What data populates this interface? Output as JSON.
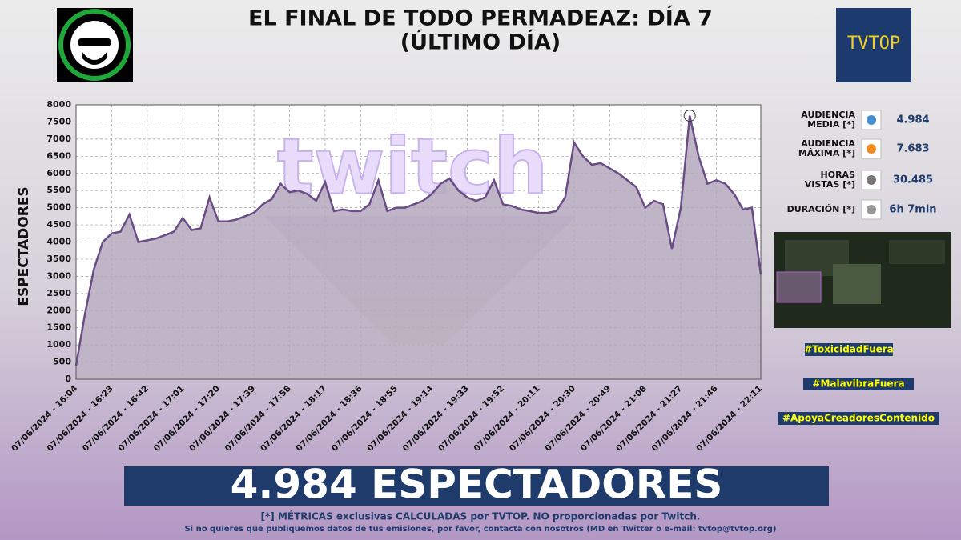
{
  "header": {
    "title_lines": [
      "EL FINAL DE TODO  PERMADEAZ: DÍA 7",
      "(ÚLTIMO DÍA)"
    ],
    "logo_text": "TVTOP"
  },
  "chart_data": {
    "type": "area",
    "watermark": "twitch",
    "y_label": "ESPECTADORES",
    "categories": [
      "07/06/2024 - 16:04",
      null,
      null,
      null,
      "07/06/2024 - 16:23",
      null,
      null,
      null,
      "07/06/2024 - 16:42",
      null,
      null,
      null,
      "07/06/2024 - 17:01",
      null,
      null,
      null,
      "07/06/2024 - 17:20",
      null,
      null,
      null,
      "07/06/2024 - 17:39",
      null,
      null,
      null,
      "07/06/2024 - 17:58",
      null,
      null,
      null,
      "07/06/2024 - 18:17",
      null,
      null,
      null,
      "07/06/2024 - 18:36",
      null,
      null,
      null,
      "07/06/2024 - 18:55",
      null,
      null,
      null,
      "07/06/2024 - 19:14",
      null,
      null,
      null,
      "07/06/2024 - 19:33",
      null,
      null,
      null,
      "07/06/2024 - 19:52",
      null,
      null,
      null,
      "07/06/2024 - 20:11",
      null,
      null,
      null,
      "07/06/2024 - 20:30",
      null,
      null,
      null,
      "07/06/2024 - 20:49",
      null,
      null,
      null,
      "07/06/2024 - 21:08",
      null,
      null,
      null,
      "07/06/2024 - 21:27",
      null,
      null,
      null,
      "07/06/2024 - 21:46",
      null,
      null,
      null,
      null,
      "07/06/2024 - 22:11"
    ],
    "values": [
      400,
      1900,
      3200,
      4000,
      4250,
      4300,
      4800,
      4000,
      4050,
      4100,
      4200,
      4300,
      4700,
      4350,
      4400,
      5300,
      4600,
      4600,
      4650,
      4750,
      4850,
      5100,
      5250,
      5700,
      5450,
      5500,
      5400,
      5200,
      5750,
      4900,
      4950,
      4900,
      4900,
      5100,
      5800,
      4900,
      5000,
      5000,
      5100,
      5200,
      5400,
      5700,
      5850,
      5500,
      5300,
      5200,
      5300,
      5800,
      5100,
      5050,
      4950,
      4900,
      4850,
      4850,
      4900,
      5300,
      6900,
      6500,
      6250,
      6300,
      6150,
      6000,
      5800,
      5600,
      5000,
      5200,
      5100,
      3800,
      5000,
      7683,
      6500,
      5700,
      5800,
      5700,
      5400,
      4950,
      5000,
      3050
    ],
    "color": "#6a4c86",
    "fill": "#b4a8bd",
    "ylim": [
      0,
      8000
    ],
    "yticks": [
      0,
      500,
      1000,
      1500,
      2000,
      2500,
      3000,
      3500,
      4000,
      4500,
      5000,
      5500,
      6000,
      6500,
      7000,
      7500,
      8000
    ],
    "grid": true
  },
  "stats": [
    {
      "label": [
        "AUDIENCIA",
        "MEDIA [*]"
      ],
      "value": "4.984"
    },
    {
      "label": [
        "AUDIENCIA",
        "MÁXIMA [*]"
      ],
      "value": "7.683"
    },
    {
      "label": [
        "HORAS",
        "VISTAS [*]"
      ],
      "value": "30.485"
    },
    {
      "label": [
        "DURACIÓN [*]"
      ],
      "value": "6h 7min"
    }
  ],
  "hashtags": [
    "#ToxicidadFuera",
    "#MalavibraFuera",
    "#ApoyaCreadoresContenido"
  ],
  "banner": "4.984 ESPECTADORES",
  "footer": [
    "[*] MÉTRICAS exclusivas CALCULADAS por TVTOP. NO proporcionadas por Twitch.",
    "Si no quieres que publiquemos datos de tus emisiones, por favor, contacta con nosotros (MD en Twitter o e-mail: tvtop@tvtop.org)"
  ]
}
